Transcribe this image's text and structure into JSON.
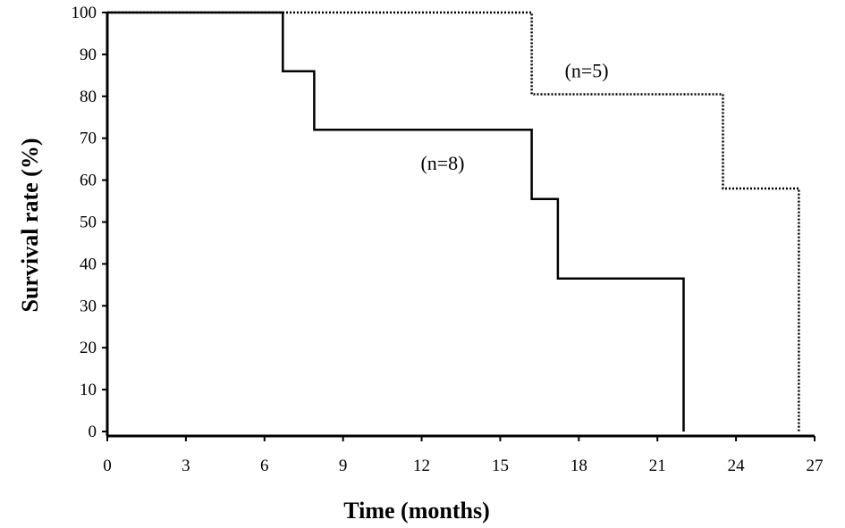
{
  "chart_data": {
    "type": "line",
    "step": true,
    "title": "",
    "xlabel": "Time (months)",
    "ylabel": "Survival rate (%)",
    "xlim": [
      0,
      27
    ],
    "ylim": [
      0,
      100
    ],
    "xticks": [
      0,
      3,
      6,
      9,
      12,
      15,
      18,
      21,
      24,
      27
    ],
    "yticks": [
      0,
      10,
      20,
      30,
      40,
      50,
      60,
      70,
      80,
      90,
      100
    ],
    "grid": false,
    "series": [
      {
        "style": "solid",
        "color": "#000000",
        "x": [
          0,
          6.7,
          6.7,
          7.9,
          7.9,
          16.2,
          16.2,
          17.2,
          17.2,
          22.0,
          22.0
        ],
        "y": [
          100,
          100,
          86,
          86,
          72,
          72,
          55.5,
          55.5,
          36.5,
          36.5,
          0
        ]
      },
      {
        "style": "dotted",
        "color": "#000000",
        "x": [
          0,
          16.2,
          16.2,
          23.5,
          23.5,
          26.4,
          26.4
        ],
        "y": [
          100,
          100,
          80.5,
          80.5,
          58,
          58,
          0
        ]
      }
    ],
    "annotations": [
      {
        "text": "(n=8)",
        "x": 12.8,
        "y": 62.5
      },
      {
        "text": "(n=5)",
        "x": 18.3,
        "y": 84.5
      }
    ]
  }
}
